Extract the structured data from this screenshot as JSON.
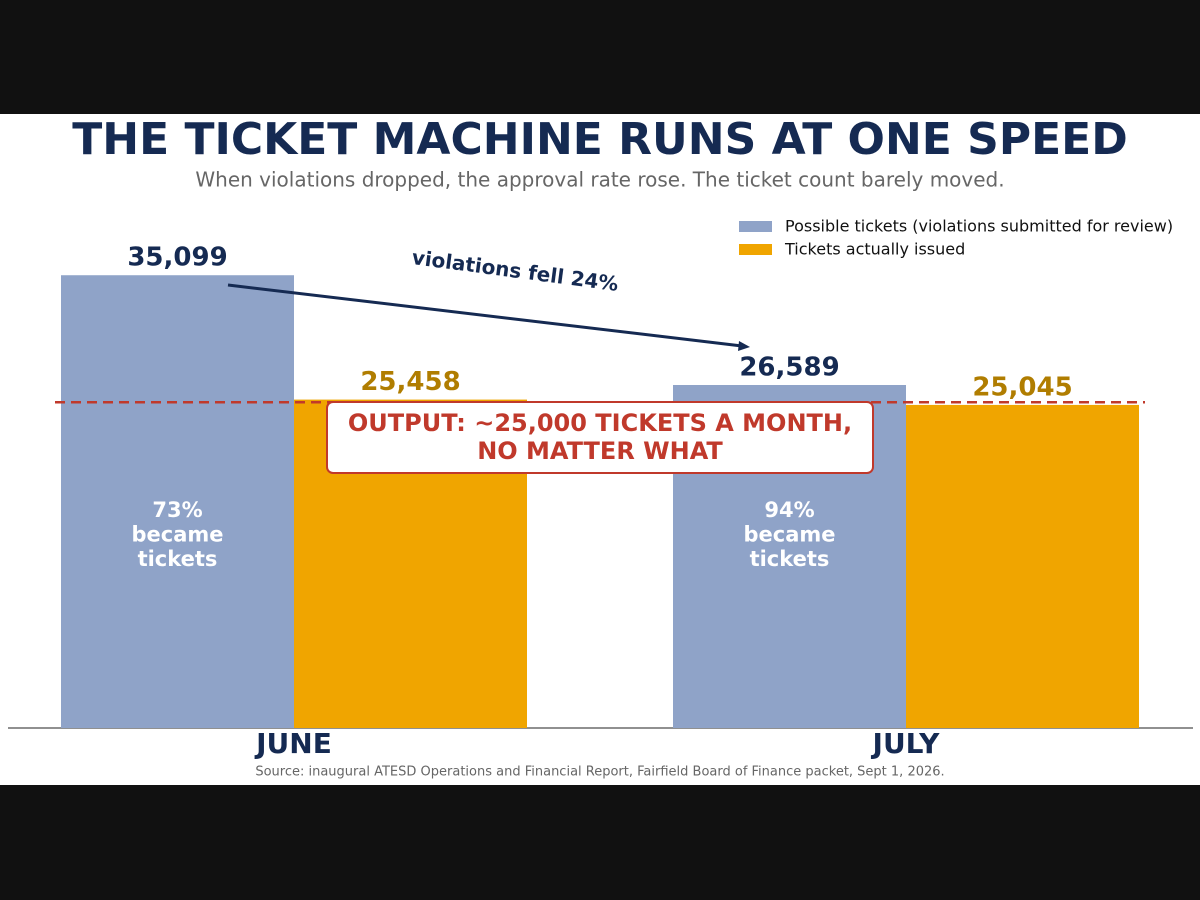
{
  "chart_data": {
    "type": "bar",
    "title": "THE TICKET MACHINE RUNS AT ONE SPEED",
    "subtitle": "When violations dropped, the approval rate rose. The ticket count barely moved.",
    "categories": [
      "JUNE",
      "JULY"
    ],
    "series": [
      {
        "name": "Possible tickets (violations submitted for review)",
        "color": "#8fa3c8",
        "values": [
          35099,
          26589
        ],
        "value_labels": [
          "35,099",
          "26,589"
        ],
        "label_color": "#152a52"
      },
      {
        "name": "Tickets actually issued",
        "color": "#f0a500",
        "values": [
          25458,
          25045
        ],
        "value_labels": [
          "25,458",
          "25,045"
        ],
        "label_color": "#b07d00"
      }
    ],
    "inner_labels": [
      [
        "73%",
        "became",
        "tickets"
      ],
      [
        "94%",
        "became",
        "tickets"
      ]
    ],
    "arrow_annotation": "violations fell 24%",
    "reference_line": {
      "value": 25252,
      "color": "#c0392b",
      "label": [
        "OUTPUT: ~25,000 TICKETS A MONTH,",
        "NO MATTER WHAT"
      ]
    },
    "ylim": [
      0,
      40000
    ],
    "legend": "upper right",
    "source": "Source: inaugural ATESD Operations and Financial Report, Fairfield Board of Finance packet, Sept 1, 2026."
  }
}
